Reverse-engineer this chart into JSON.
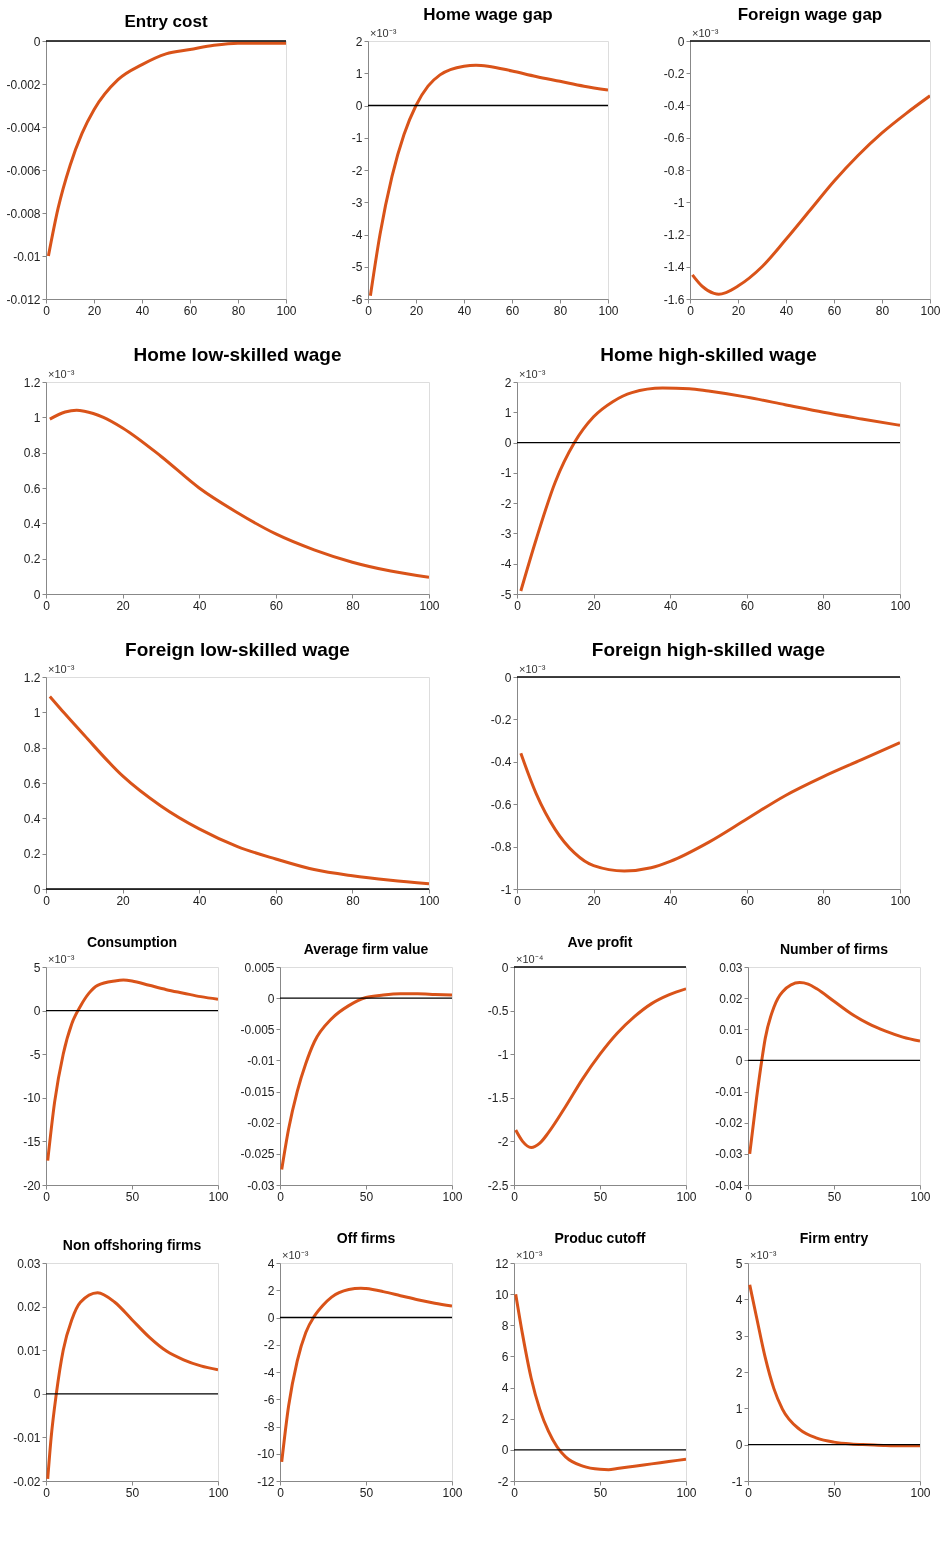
{
  "chart_data": [
    {
      "type": "line",
      "title": "Entry cost",
      "x": [
        1,
        5,
        10,
        15,
        20,
        30,
        40,
        50,
        60,
        70,
        80,
        90,
        100
      ],
      "values": [
        -0.01,
        -0.0078,
        -0.0058,
        -0.0043,
        -0.0032,
        -0.0018,
        -0.0011,
        -0.0006,
        -0.0004,
        -0.0002,
        -0.0001,
        -0.0001,
        -0.0001
      ],
      "color": "#d95319",
      "xlim": [
        0,
        100
      ],
      "xticks": [
        0,
        20,
        40,
        60,
        80,
        100
      ],
      "ylim": [
        -0.012,
        0
      ],
      "yticks": [
        -0.012,
        -0.01,
        -0.008,
        -0.006,
        -0.004,
        -0.002,
        0
      ],
      "ref_lines": [
        {
          "axis": "y",
          "value": 0
        }
      ],
      "grid": false
    },
    {
      "type": "line",
      "title": "Home wage gap",
      "annotations": [
        "×10⁻³"
      ],
      "x": [
        1,
        5,
        10,
        15,
        20,
        25,
        30,
        40,
        45,
        50,
        60,
        70,
        80,
        90,
        100
      ],
      "values": [
        -5.9,
        -4.0,
        -2.2,
        -0.9,
        0.0,
        0.6,
        0.95,
        1.22,
        1.25,
        1.22,
        1.07,
        0.9,
        0.75,
        0.6,
        0.48
      ],
      "color": "#d95319",
      "xlim": [
        0,
        100
      ],
      "xticks": [
        0,
        20,
        40,
        60,
        80,
        100
      ],
      "ylim": [
        -6,
        2
      ],
      "yticks": [
        -6,
        -5,
        -4,
        -3,
        -2,
        -1,
        0,
        1,
        2
      ],
      "ref_lines": [
        {
          "axis": "y",
          "value": 0
        }
      ],
      "grid": false
    },
    {
      "type": "line",
      "title": "Foreign wage gap",
      "annotations": [
        "×10⁻³"
      ],
      "x": [
        1,
        5,
        10,
        12,
        15,
        20,
        30,
        40,
        50,
        60,
        70,
        80,
        90,
        100
      ],
      "values": [
        -1.45,
        -1.52,
        -1.565,
        -1.57,
        -1.56,
        -1.52,
        -1.4,
        -1.23,
        -1.05,
        -0.87,
        -0.71,
        -0.57,
        -0.45,
        -0.34
      ],
      "color": "#d95319",
      "xlim": [
        0,
        100
      ],
      "xticks": [
        0,
        20,
        40,
        60,
        80,
        100
      ],
      "ylim": [
        -1.6,
        0
      ],
      "yticks": [
        -1.6,
        -1.4,
        -1.2,
        -1,
        -0.8,
        -0.6,
        -0.4,
        -0.2,
        0
      ],
      "ref_lines": [
        {
          "axis": "y",
          "value": 0
        }
      ],
      "grid": false
    },
    {
      "type": "line",
      "title": "Home low-skilled wage",
      "annotations": [
        "×10⁻³"
      ],
      "x": [
        1,
        5,
        8,
        10,
        15,
        20,
        30,
        40,
        50,
        60,
        70,
        80,
        90,
        100
      ],
      "values": [
        0.99,
        1.03,
        1.04,
        1.035,
        1.0,
        0.94,
        0.78,
        0.6,
        0.46,
        0.34,
        0.25,
        0.18,
        0.13,
        0.095
      ],
      "color": "#d95319",
      "xlim": [
        0,
        100
      ],
      "xticks": [
        0,
        20,
        40,
        60,
        80,
        100
      ],
      "ylim": [
        0,
        1.2
      ],
      "yticks": [
        0,
        0.2,
        0.4,
        0.6,
        0.8,
        1,
        1.2
      ],
      "grid": false
    },
    {
      "type": "line",
      "title": "Home high-skilled wage",
      "annotations": [
        "×10⁻³"
      ],
      "x": [
        1,
        5,
        10,
        15,
        20,
        25,
        30,
        38,
        45,
        50,
        60,
        70,
        80,
        90,
        100
      ],
      "values": [
        -4.9,
        -3.2,
        -1.3,
        0.0,
        0.85,
        1.35,
        1.65,
        1.8,
        1.78,
        1.7,
        1.5,
        1.25,
        1.0,
        0.78,
        0.57
      ],
      "color": "#d95319",
      "xlim": [
        0,
        100
      ],
      "xticks": [
        0,
        20,
        40,
        60,
        80,
        100
      ],
      "ylim": [
        -5,
        2
      ],
      "yticks": [
        -5,
        -4,
        -3,
        -2,
        -1,
        0,
        1,
        2
      ],
      "ref_lines": [
        {
          "axis": "y",
          "value": 0
        }
      ],
      "grid": false
    },
    {
      "type": "line",
      "title": "Foreign low-skilled wage",
      "annotations": [
        "×10⁻³"
      ],
      "x": [
        1,
        5,
        10,
        20,
        30,
        40,
        50,
        60,
        70,
        80,
        90,
        100
      ],
      "values": [
        1.09,
        0.99,
        0.87,
        0.64,
        0.47,
        0.34,
        0.24,
        0.17,
        0.11,
        0.075,
        0.05,
        0.03
      ],
      "color": "#d95319",
      "xlim": [
        0,
        100
      ],
      "xticks": [
        0,
        20,
        40,
        60,
        80,
        100
      ],
      "ylim": [
        0,
        1.2
      ],
      "yticks": [
        0,
        0.2,
        0.4,
        0.6,
        0.8,
        1,
        1.2
      ],
      "ref_lines": [
        {
          "axis": "y",
          "value": 0
        }
      ],
      "grid": false
    },
    {
      "type": "line",
      "title": "Foreign high-skilled wage",
      "annotations": [
        "×10⁻³"
      ],
      "x": [
        1,
        5,
        10,
        15,
        20,
        28,
        35,
        40,
        50,
        60,
        70,
        80,
        90,
        100
      ],
      "values": [
        -0.36,
        -0.55,
        -0.72,
        -0.83,
        -0.89,
        -0.915,
        -0.9,
        -0.87,
        -0.78,
        -0.67,
        -0.56,
        -0.47,
        -0.39,
        -0.31
      ],
      "color": "#d95319",
      "xlim": [
        0,
        100
      ],
      "xticks": [
        0,
        20,
        40,
        60,
        80,
        100
      ],
      "ylim": [
        -1,
        0
      ],
      "yticks": [
        -1,
        -0.8,
        -0.6,
        -0.4,
        -0.2,
        0
      ],
      "ref_lines": [
        {
          "axis": "y",
          "value": 0
        }
      ],
      "grid": false
    },
    {
      "type": "line",
      "title": "Consumption",
      "annotations": [
        "×10⁻³"
      ],
      "x": [
        1,
        5,
        10,
        15,
        20,
        25,
        30,
        40,
        45,
        50,
        60,
        70,
        80,
        90,
        100
      ],
      "values": [
        -17.2,
        -10.5,
        -5.0,
        -1.5,
        0.5,
        2.0,
        2.9,
        3.4,
        3.5,
        3.4,
        2.9,
        2.4,
        2.0,
        1.6,
        1.3
      ],
      "color": "#d95319",
      "xlim": [
        0,
        100
      ],
      "xticks": [
        0,
        50,
        100
      ],
      "ylim": [
        -20,
        5
      ],
      "yticks": [
        -20,
        -15,
        -10,
        -5,
        0,
        5
      ],
      "ref_lines": [
        {
          "axis": "y",
          "value": 0
        }
      ],
      "grid": false
    },
    {
      "type": "line",
      "title": "Average firm value",
      "x": [
        1,
        5,
        10,
        15,
        20,
        30,
        40,
        50,
        60,
        70,
        80,
        90,
        100
      ],
      "values": [
        -0.0275,
        -0.021,
        -0.015,
        -0.0105,
        -0.007,
        -0.0033,
        -0.0012,
        0.0001,
        0.0005,
        0.0007,
        0.0007,
        0.0006,
        0.0005
      ],
      "color": "#d95319",
      "xlim": [
        0,
        100
      ],
      "xticks": [
        0,
        50,
        100
      ],
      "ylim": [
        -0.03,
        0.005
      ],
      "yticks": [
        -0.03,
        -0.025,
        -0.02,
        -0.015,
        -0.01,
        -0.005,
        0,
        0.005
      ],
      "ref_lines": [
        {
          "axis": "y",
          "value": 0
        }
      ],
      "grid": false
    },
    {
      "type": "line",
      "title": "Ave profit",
      "annotations": [
        "×10⁻⁴"
      ],
      "x": [
        1,
        5,
        10,
        15,
        20,
        30,
        40,
        50,
        60,
        70,
        80,
        90,
        100
      ],
      "values": [
        -1.87,
        -2.0,
        -2.07,
        -2.02,
        -1.9,
        -1.6,
        -1.28,
        -1.0,
        -0.76,
        -0.57,
        -0.42,
        -0.32,
        -0.25
      ],
      "color": "#d95319",
      "xlim": [
        0,
        100
      ],
      "xticks": [
        0,
        50,
        100
      ],
      "ylim": [
        -2.5,
        0
      ],
      "yticks": [
        -2.5,
        -2,
        -1.5,
        -1,
        -0.5,
        0
      ],
      "ref_lines": [
        {
          "axis": "y",
          "value": 0
        }
      ],
      "grid": false
    },
    {
      "type": "line",
      "title": "Number of firms",
      "x": [
        1,
        5,
        8,
        10,
        15,
        20,
        30,
        35,
        40,
        50,
        60,
        70,
        80,
        90,
        100
      ],
      "values": [
        -0.03,
        -0.012,
        0.0,
        0.007,
        0.017,
        0.022,
        0.025,
        0.0245,
        0.023,
        0.019,
        0.015,
        0.0118,
        0.0094,
        0.0075,
        0.0062
      ],
      "color": "#d95319",
      "xlim": [
        0,
        100
      ],
      "xticks": [
        0,
        50,
        100
      ],
      "ylim": [
        -0.04,
        0.03
      ],
      "yticks": [
        -0.04,
        -0.03,
        -0.02,
        -0.01,
        0,
        0.01,
        0.02,
        0.03
      ],
      "ref_lines": [
        {
          "axis": "y",
          "value": 0
        }
      ],
      "grid": false
    },
    {
      "type": "line",
      "title": "Non offshoring firms",
      "x": [
        1,
        3,
        6,
        10,
        15,
        20,
        30,
        40,
        50,
        60,
        70,
        80,
        90,
        100
      ],
      "values": [
        -0.0195,
        -0.01,
        0.0,
        0.01,
        0.017,
        0.021,
        0.0232,
        0.021,
        0.017,
        0.013,
        0.0098,
        0.0078,
        0.0064,
        0.0055
      ],
      "color": "#d95319",
      "xlim": [
        0,
        100
      ],
      "xticks": [
        0,
        50,
        100
      ],
      "ylim": [
        -0.02,
        0.03
      ],
      "yticks": [
        -0.02,
        -0.01,
        0,
        0.01,
        0.02,
        0.03
      ],
      "ref_lines": [
        {
          "axis": "y",
          "value": 0
        }
      ],
      "grid": false
    },
    {
      "type": "line",
      "title": "Off firms",
      "annotations": [
        "×10⁻³"
      ],
      "x": [
        1,
        5,
        10,
        15,
        20,
        25,
        30,
        40,
        47,
        50,
        60,
        70,
        80,
        90,
        100
      ],
      "values": [
        -10.6,
        -6.5,
        -3.2,
        -1.1,
        0.1,
        0.9,
        1.5,
        2.05,
        2.15,
        2.12,
        1.9,
        1.6,
        1.3,
        1.05,
        0.85
      ],
      "color": "#d95319",
      "xlim": [
        0,
        100
      ],
      "xticks": [
        0,
        50,
        100
      ],
      "ylim": [
        -12,
        4
      ],
      "yticks": [
        -12,
        -10,
        -8,
        -6,
        -4,
        -2,
        0,
        2,
        4
      ],
      "ref_lines": [
        {
          "axis": "y",
          "value": 0
        }
      ],
      "grid": false
    },
    {
      "type": "line",
      "title": "Produc cutoff",
      "annotations": [
        "×10⁻³"
      ],
      "x": [
        1,
        5,
        10,
        15,
        20,
        25,
        30,
        40,
        50,
        55,
        60,
        70,
        80,
        90,
        100
      ],
      "values": [
        10.0,
        7.4,
        4.6,
        2.6,
        1.2,
        0.2,
        -0.45,
        -1.05,
        -1.25,
        -1.27,
        -1.2,
        -1.05,
        -0.9,
        -0.75,
        -0.6
      ],
      "color": "#d95319",
      "xlim": [
        0,
        100
      ],
      "xticks": [
        0,
        50,
        100
      ],
      "ylim": [
        -2,
        12
      ],
      "yticks": [
        -2,
        0,
        2,
        4,
        6,
        8,
        10,
        12
      ],
      "ref_lines": [
        {
          "axis": "y",
          "value": 0
        }
      ],
      "grid": false
    },
    {
      "type": "line",
      "title": "Firm entry",
      "annotations": [
        "×10⁻³"
      ],
      "x": [
        1,
        5,
        10,
        15,
        20,
        30,
        40,
        50,
        60,
        70,
        80,
        90,
        100
      ],
      "values": [
        4.4,
        3.5,
        2.4,
        1.55,
        0.98,
        0.42,
        0.18,
        0.07,
        0.02,
        0.0,
        -0.02,
        -0.03,
        -0.03
      ],
      "color": "#d95319",
      "xlim": [
        0,
        100
      ],
      "xticks": [
        0,
        50,
        100
      ],
      "ylim": [
        -1,
        5
      ],
      "yticks": [
        -1,
        0,
        1,
        2,
        3,
        4,
        5
      ],
      "ref_lines": [
        {
          "axis": "y",
          "value": 0
        }
      ],
      "grid": false
    }
  ]
}
